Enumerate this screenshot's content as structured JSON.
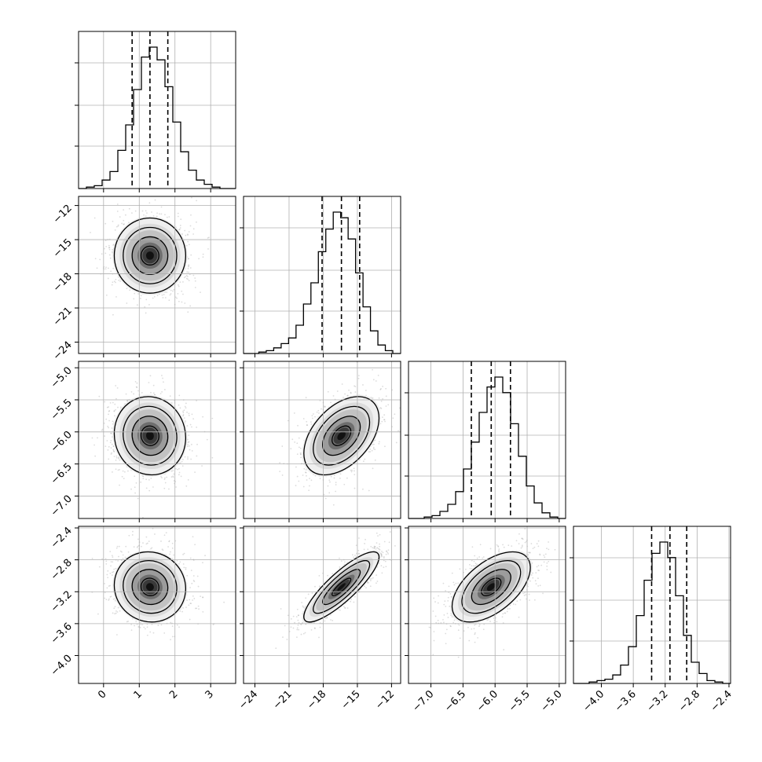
{
  "chart_data": {
    "type": "corner",
    "grid": true,
    "parameters": [
      {
        "range": [
          -0.7,
          3.7
        ],
        "ticks": [
          0,
          1,
          2,
          3
        ],
        "tick_labels": [
          "0",
          "1",
          "2",
          "3"
        ],
        "quantiles": [
          0.8,
          1.3,
          1.8
        ]
      },
      {
        "range": [
          -25.0,
          -11.2
        ],
        "ticks": [
          -24,
          -21,
          -18,
          -15,
          -12
        ],
        "tick_labels": [
          "−24",
          "−21",
          "−18",
          "−15",
          "−12"
        ],
        "quantiles": [
          -18.1,
          -16.4,
          -14.8
        ]
      },
      {
        "range": [
          -7.35,
          -4.9
        ],
        "ticks": [
          -7.0,
          -6.5,
          -6.0,
          -5.5,
          -5.0
        ],
        "tick_labels": [
          "−7.0",
          "−6.5",
          "−6.0",
          "−5.5",
          "−5.0"
        ],
        "quantiles": [
          -6.37,
          -6.06,
          -5.76
        ]
      },
      {
        "range": [
          -4.35,
          -2.38
        ],
        "ticks": [
          -4.0,
          -3.6,
          -3.2,
          -2.8,
          -2.4
        ],
        "tick_labels": [
          "−4.0",
          "−3.6",
          "−3.2",
          "−2.8",
          "−2.4"
        ],
        "quantiles": [
          -3.37,
          -3.14,
          -2.93
        ]
      }
    ],
    "histograms": [
      [
        0.01,
        0.02,
        0.06,
        0.12,
        0.27,
        0.45,
        0.7,
        0.93,
        1.0,
        0.91,
        0.72,
        0.47,
        0.26,
        0.13,
        0.06,
        0.03,
        0.01,
        0.0
      ],
      [
        0.0,
        0.01,
        0.02,
        0.04,
        0.07,
        0.11,
        0.2,
        0.35,
        0.5,
        0.72,
        0.88,
        1.0,
        0.96,
        0.81,
        0.57,
        0.33,
        0.16,
        0.06,
        0.02
      ],
      [
        0.0,
        0.01,
        0.02,
        0.05,
        0.1,
        0.19,
        0.35,
        0.54,
        0.75,
        0.93,
        1.0,
        0.89,
        0.67,
        0.44,
        0.23,
        0.11,
        0.04,
        0.01
      ],
      [
        0.0,
        0.01,
        0.02,
        0.03,
        0.06,
        0.13,
        0.26,
        0.48,
        0.73,
        0.92,
        1.0,
        0.89,
        0.62,
        0.34,
        0.15,
        0.07,
        0.02,
        0.01
      ]
    ],
    "correlations": [
      {
        "x": 0,
        "y": 1,
        "rho": 0.0
      },
      {
        "x": 0,
        "y": 2,
        "rho": -0.05
      },
      {
        "x": 0,
        "y": 3,
        "rho": -0.05
      },
      {
        "x": 1,
        "y": 2,
        "rho": 0.45
      },
      {
        "x": 1,
        "y": 3,
        "rho": 0.85
      },
      {
        "x": 2,
        "y": 3,
        "rho": 0.55
      }
    ],
    "contour_levels": [
      0.5,
      1.0,
      1.5,
      2.0
    ]
  }
}
